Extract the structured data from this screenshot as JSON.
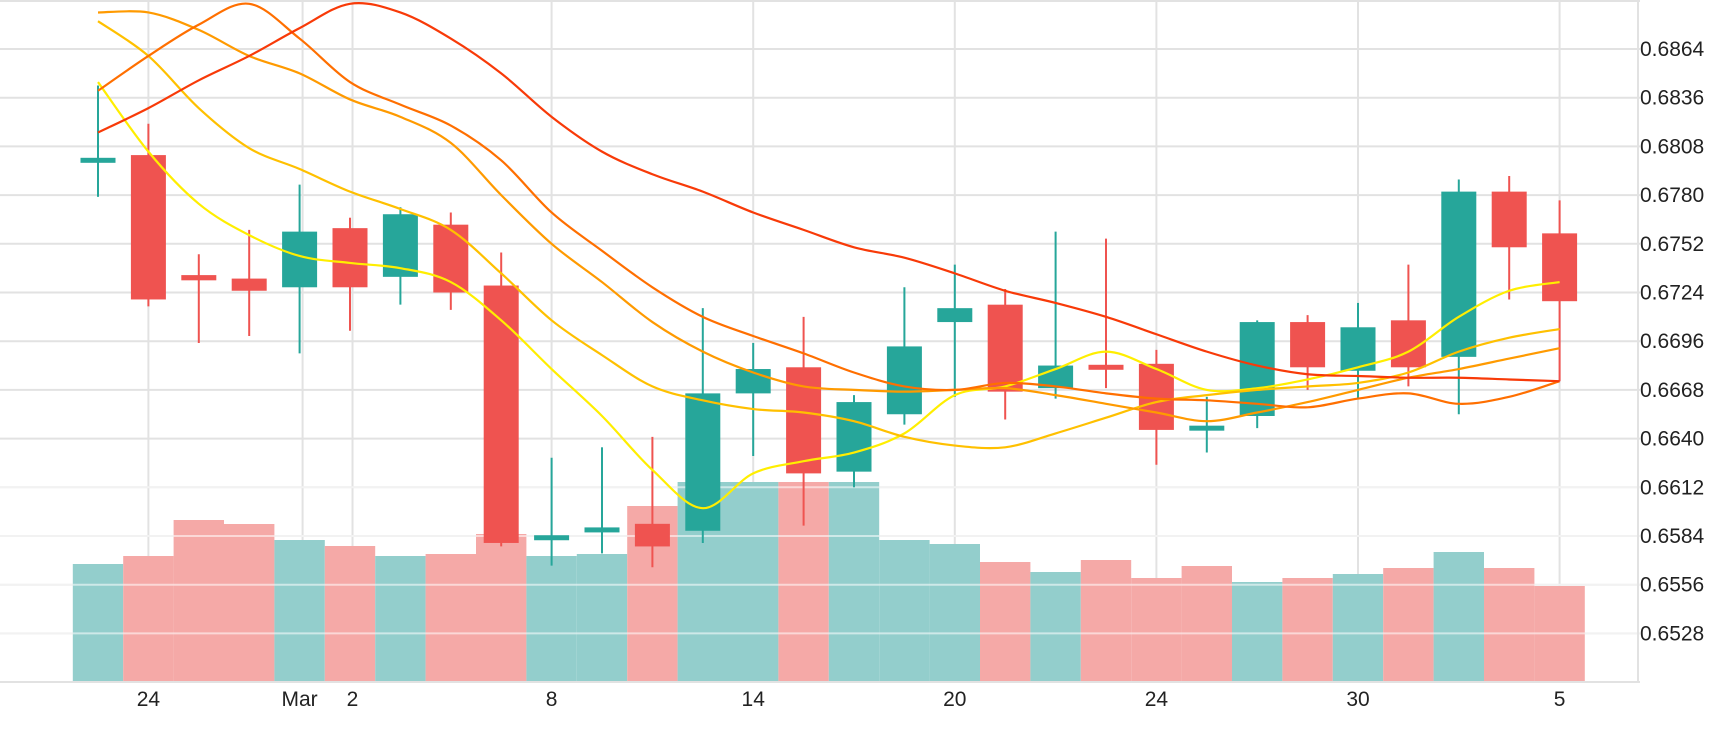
{
  "chart_data": {
    "type": "candlestick",
    "colors": {
      "up": "#26a69a",
      "down": "#ef5350",
      "volume_up": "#93cecc",
      "volume_down": "#f5a9a7",
      "grid": "#e2e2e2",
      "ma_lines": [
        "#ffee00",
        "#ffc000",
        "#ff9a00",
        "#ff6f00",
        "#f83a08"
      ]
    },
    "y_axis": {
      "side": "right",
      "ticks": [
        "0.6864",
        "0.6836",
        "0.6808",
        "0.6780",
        "0.6752",
        "0.6724",
        "0.6696",
        "0.6668",
        "0.6640",
        "0.6612",
        "0.6584",
        "0.6556",
        "0.6528"
      ]
    },
    "x_axis": {
      "ticks": [
        {
          "label": "24",
          "index": 1
        },
        {
          "label": "Mar",
          "index": 4
        },
        {
          "label": "2",
          "index": 5.05
        },
        {
          "label": "8",
          "index": 9
        },
        {
          "label": "14",
          "index": 13
        },
        {
          "label": "20",
          "index": 17
        },
        {
          "label": "24",
          "index": 21
        },
        {
          "label": "30",
          "index": 25
        },
        {
          "label": "5",
          "index": 29
        }
      ]
    },
    "grid": true,
    "candles": [
      {
        "o": 0.68,
        "h": 0.6843,
        "l": 0.6779,
        "c": 0.68
      },
      {
        "o": 0.6803,
        "h": 0.6821,
        "l": 0.6716,
        "c": 0.672
      },
      {
        "o": 0.6734,
        "h": 0.6746,
        "l": 0.6695,
        "c": 0.6731
      },
      {
        "o": 0.6732,
        "h": 0.676,
        "l": 0.6699,
        "c": 0.6725
      },
      {
        "o": 0.6727,
        "h": 0.6786,
        "l": 0.6689,
        "c": 0.6759
      },
      {
        "o": 0.6761,
        "h": 0.6767,
        "l": 0.6702,
        "c": 0.6727
      },
      {
        "o": 0.6733,
        "h": 0.6773,
        "l": 0.6717,
        "c": 0.6769
      },
      {
        "o": 0.6763,
        "h": 0.677,
        "l": 0.6714,
        "c": 0.6724
      },
      {
        "o": 0.6728,
        "h": 0.6747,
        "l": 0.6578,
        "c": 0.658
      },
      {
        "o": 0.6583,
        "h": 0.6629,
        "l": 0.6567,
        "c": 0.6583
      },
      {
        "o": 0.6587,
        "h": 0.6635,
        "l": 0.6574,
        "c": 0.6588
      },
      {
        "o": 0.6591,
        "h": 0.6641,
        "l": 0.6566,
        "c": 0.6578
      },
      {
        "o": 0.6587,
        "h": 0.6715,
        "l": 0.658,
        "c": 0.6666
      },
      {
        "o": 0.6666,
        "h": 0.6695,
        "l": 0.663,
        "c": 0.668
      },
      {
        "o": 0.6681,
        "h": 0.671,
        "l": 0.659,
        "c": 0.662
      },
      {
        "o": 0.6621,
        "h": 0.6665,
        "l": 0.6612,
        "c": 0.6661
      },
      {
        "o": 0.6654,
        "h": 0.6727,
        "l": 0.6648,
        "c": 0.6693
      },
      {
        "o": 0.6707,
        "h": 0.674,
        "l": 0.6664,
        "c": 0.6715
      },
      {
        "o": 0.6717,
        "h": 0.6726,
        "l": 0.6651,
        "c": 0.6667
      },
      {
        "o": 0.6669,
        "h": 0.6759,
        "l": 0.6663,
        "c": 0.6682
      },
      {
        "o": 0.6682,
        "h": 0.6755,
        "l": 0.6669,
        "c": 0.668
      },
      {
        "o": 0.6683,
        "h": 0.6691,
        "l": 0.6625,
        "c": 0.6645
      },
      {
        "o": 0.6646,
        "h": 0.6664,
        "l": 0.6632,
        "c": 0.6646
      },
      {
        "o": 0.6653,
        "h": 0.6708,
        "l": 0.6646,
        "c": 0.6707
      },
      {
        "o": 0.6707,
        "h": 0.6711,
        "l": 0.6668,
        "c": 0.6681
      },
      {
        "o": 0.6679,
        "h": 0.6718,
        "l": 0.6663,
        "c": 0.6704
      },
      {
        "o": 0.6708,
        "h": 0.674,
        "l": 0.667,
        "c": 0.6681
      },
      {
        "o": 0.6687,
        "h": 0.6789,
        "l": 0.6654,
        "c": 0.6782
      },
      {
        "o": 0.6782,
        "h": 0.6791,
        "l": 0.672,
        "c": 0.675
      },
      {
        "o": 0.6758,
        "h": 0.6777,
        "l": 0.6673,
        "c": 0.6719
      }
    ],
    "volume": {
      "relative": [
        0.59,
        0.63,
        0.81,
        0.79,
        0.71,
        0.68,
        0.63,
        0.64,
        0.74,
        0.63,
        0.64,
        0.88,
        1.0,
        1.0,
        1.0,
        1.0,
        0.71,
        0.69,
        0.6,
        0.55,
        0.61,
        0.52,
        0.58,
        0.5,
        0.52,
        0.54,
        0.57,
        0.65,
        0.57,
        0.48
      ],
      "up": [
        true,
        false,
        false,
        false,
        true,
        false,
        true,
        false,
        false,
        true,
        true,
        false,
        true,
        true,
        false,
        true,
        true,
        true,
        false,
        true,
        false,
        false,
        false,
        true,
        false,
        true,
        false,
        true,
        false,
        false
      ]
    },
    "ma_series": [
      {
        "values": [
          0.6845,
          0.6805,
          0.6775,
          0.6757,
          0.6745,
          0.6741,
          0.6738,
          0.673,
          0.6708,
          0.668,
          0.6653,
          0.6622,
          0.66,
          0.662,
          0.6627,
          0.6632,
          0.6643,
          0.6665,
          0.667,
          0.668,
          0.669,
          0.668,
          0.6668,
          0.6669,
          0.6674,
          0.6681,
          0.669,
          0.671,
          0.6725,
          0.673
        ]
      },
      {
        "values": [
          0.688,
          0.686,
          0.683,
          0.6807,
          0.6795,
          0.6782,
          0.6772,
          0.676,
          0.6735,
          0.6708,
          0.6688,
          0.667,
          0.6662,
          0.6657,
          0.6655,
          0.665,
          0.6641,
          0.6636,
          0.6635,
          0.6643,
          0.6652,
          0.6661,
          0.6665,
          0.6668,
          0.667,
          0.6672,
          0.6678,
          0.669,
          0.6698,
          0.6703
        ]
      },
      {
        "values": [
          0.6885,
          0.6885,
          0.6875,
          0.686,
          0.685,
          0.6835,
          0.6825,
          0.681,
          0.678,
          0.6752,
          0.673,
          0.6707,
          0.669,
          0.6678,
          0.667,
          0.6668,
          0.6667,
          0.6668,
          0.6669,
          0.6665,
          0.666,
          0.6655,
          0.665,
          0.6655,
          0.6661,
          0.6668,
          0.6675,
          0.668,
          0.6686,
          0.6692
        ]
      },
      {
        "values": [
          0.684,
          0.686,
          0.6878,
          0.689,
          0.687,
          0.6845,
          0.6832,
          0.682,
          0.68,
          0.677,
          0.6748,
          0.6727,
          0.671,
          0.6699,
          0.6689,
          0.6678,
          0.667,
          0.6668,
          0.6672,
          0.667,
          0.6666,
          0.6663,
          0.6662,
          0.666,
          0.6658,
          0.6663,
          0.6666,
          0.666,
          0.6664,
          0.6673
        ]
      },
      {
        "values": [
          0.6816,
          0.683,
          0.6846,
          0.686,
          0.6876,
          0.689,
          0.6885,
          0.687,
          0.685,
          0.6825,
          0.6805,
          0.6792,
          0.6782,
          0.677,
          0.676,
          0.675,
          0.6744,
          0.6735,
          0.6725,
          0.6718,
          0.671,
          0.67,
          0.669,
          0.6682,
          0.6677,
          0.6676,
          0.6675,
          0.6675,
          0.6674,
          0.6673
        ]
      }
    ]
  }
}
